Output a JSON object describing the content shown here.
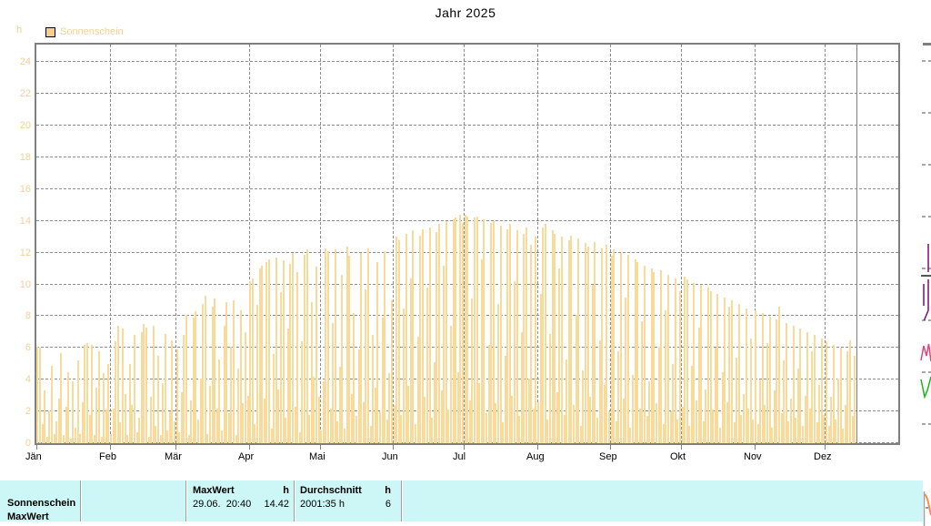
{
  "title": "Jahr 2025",
  "legend": {
    "label": "Sonnenschein",
    "swatch_color": "#f6cd8b"
  },
  "axis": {
    "unit": "h",
    "y_ticks": [
      0,
      2,
      4,
      6,
      8,
      10,
      12,
      14,
      16,
      18,
      20,
      22,
      24
    ],
    "month_labels": [
      "Jän",
      "Feb",
      "Mär",
      "Apr",
      "Mai",
      "Jun",
      "Jul",
      "Aug",
      "Sep",
      "Okt",
      "Nov",
      "Dez"
    ]
  },
  "chart_data": {
    "type": "bar",
    "title": "Jahr 2025",
    "series_name": "Sonnenschein",
    "ylabel": "h",
    "ylim": [
      0,
      24
    ],
    "y_tick_step": 2,
    "grid": "dashed",
    "legend_position": "top-left",
    "bar_color": "#f8da9b",
    "categories_months": [
      "Jän",
      "Feb",
      "Mär",
      "Apr",
      "Mai",
      "Jun",
      "Jul",
      "Aug",
      "Sep",
      "Okt",
      "Nov",
      "Dez"
    ],
    "days_per_month": [
      31,
      28,
      31,
      30,
      31,
      30,
      31,
      31,
      30,
      31,
      30,
      31
    ],
    "days_plotted": 347,
    "max_point": {
      "date": "29.06.",
      "time": "20:40",
      "value": 14.42
    },
    "values": [
      6.1,
      6.0,
      1.2,
      3.3,
      0.4,
      2.0,
      4.9,
      0.6,
      1.4,
      2.8,
      5.7,
      0.5,
      2.3,
      4.5,
      0.3,
      3.9,
      1.0,
      5.2,
      0.6,
      2.6,
      6.2,
      6.3,
      1.8,
      6.2,
      0.5,
      3.5,
      5.8,
      0.4,
      4.4,
      2.1,
      5.0,
      0.6,
      2.2,
      6.4,
      7.4,
      1.3,
      7.2,
      3.1,
      0.5,
      5.0,
      2.4,
      6.8,
      0.7,
      1.6,
      7.0,
      7.5,
      7.3,
      0.4,
      2.9,
      7.4,
      1.1,
      5.5,
      0.5,
      3.8,
      6.9,
      0.8,
      2.0,
      6.5,
      1.4,
      5.9,
      0.7,
      3.2,
      6.8,
      8.1,
      0.5,
      2.7,
      7.9,
      8.3,
      1.5,
      4.1,
      8.8,
      9.3,
      0.6,
      3.6,
      8.6,
      9.1,
      2.2,
      5.3,
      0.8,
      7.4,
      8.9,
      1.9,
      6.1,
      9.0,
      0.5,
      4.7,
      8.4,
      2.5,
      7.0,
      3.0,
      10.2,
      10.4,
      1.2,
      8.7,
      11.0,
      11.2,
      2.8,
      11.4,
      11.6,
      0.9,
      5.6,
      11.7,
      3.4,
      9.5,
      11.5,
      1.6,
      7.2,
      11.3,
      12.0,
      2.3,
      10.8,
      0.7,
      6.4,
      11.9,
      12.2,
      1.8,
      8.9,
      4.2,
      11.1,
      2.9,
      0.8,
      3.9,
      12.3,
      12.1,
      2.2,
      7.6,
      12.2,
      1.4,
      4.8,
      10.6,
      0.9,
      12.4,
      11.8,
      3.1,
      8.2,
      1.7,
      5.9,
      12.0,
      2.6,
      9.7,
      12.3,
      1.1,
      6.8,
      3.5,
      11.4,
      2.0,
      7.9,
      12.1,
      1.5,
      4.4,
      9.0,
      2.4,
      13.0,
      12.8,
      1.8,
      8.5,
      13.2,
      3.6,
      10.4,
      13.4,
      1.2,
      6.7,
      13.1,
      13.5,
      2.9,
      9.8,
      13.6,
      1.6,
      5.1,
      13.3,
      13.8,
      3.3,
      11.2,
      14.0,
      2.1,
      7.4,
      14.1,
      14.2,
      4.5,
      14.42,
      13.9,
      14.4,
      14.3,
      2.7,
      9.1,
      14.2,
      14.3,
      3.8,
      11.6,
      14.1,
      1.9,
      6.2,
      13.9,
      14.0,
      2.5,
      8.8,
      13.7,
      1.3,
      5.5,
      13.5,
      13.8,
      3.0,
      10.2,
      13.4,
      1.7,
      7.0,
      13.2,
      13.6,
      4.1,
      12.5,
      2.2,
      13.0,
      2.6,
      9.4,
      13.6,
      13.8,
      1.5,
      6.9,
      13.4,
      13.2,
      3.2,
      11.0,
      13.0,
      1.8,
      5.3,
      12.8,
      13.1,
      2.4,
      8.1,
      12.9,
      1.1,
      4.6,
      12.6,
      12.4,
      2.9,
      10.0,
      12.7,
      1.6,
      6.5,
      12.3,
      3.7,
      12.5,
      2.0,
      11.8,
      12.2,
      1.4,
      5.8,
      12.0,
      2.8,
      9.2,
      11.9,
      1.0,
      4.3,
      11.6,
      11.4,
      2.2,
      7.7,
      11.2,
      1.7,
      3.9,
      11.0,
      10.8,
      2.5,
      6.1,
      10.9,
      1.2,
      8.4,
      10.6,
      2.0,
      5.0,
      10.4,
      1.5,
      9.6,
      2.3,
      10.5,
      10.3,
      1.1,
      4.9,
      10.1,
      2.7,
      7.3,
      10.0,
      1.4,
      3.4,
      9.8,
      9.6,
      2.1,
      6.0,
      9.4,
      1.0,
      4.5,
      9.2,
      2.6,
      8.6,
      9.0,
      1.3,
      5.4,
      8.8,
      1.8,
      3.1,
      8.5,
      2.2,
      6.6,
      1.5,
      8.4,
      1.2,
      4.0,
      8.2,
      2.4,
      6.3,
      8.0,
      1.0,
      3.3,
      7.8,
      8.6,
      1.9,
      5.2,
      7.6,
      1.4,
      2.8,
      7.4,
      1.6,
      4.7,
      7.2,
      1.1,
      3.0,
      7.0,
      2.2,
      5.8,
      6.8,
      1.3,
      3.7,
      6.6,
      1.8,
      6.4,
      1.1,
      2.9,
      6.2,
      1.5,
      4.1,
      6.0,
      0.9,
      2.4,
      5.8,
      6.5,
      1.7,
      5.5
    ]
  },
  "table": {
    "bg_color": "#ccf7f6",
    "row_labels": {
      "line1": "Sonnenschein",
      "line2": "MaxWert"
    },
    "maxwert": {
      "header": "MaxWert",
      "unit": "h",
      "value_left": "29.06.  20:40",
      "value_right": "14.42"
    },
    "durchschnitt": {
      "header": "Durchschnitt",
      "unit": "h",
      "value_left": "2001:35 h",
      "value_right": "6"
    }
  },
  "peek_strip": {
    "colors": {
      "purple": "#7c0d7c",
      "magenta": "#e0457e",
      "green": "#19b419",
      "orange": "#ff8a4d",
      "gray": "#7f7f7f"
    }
  }
}
